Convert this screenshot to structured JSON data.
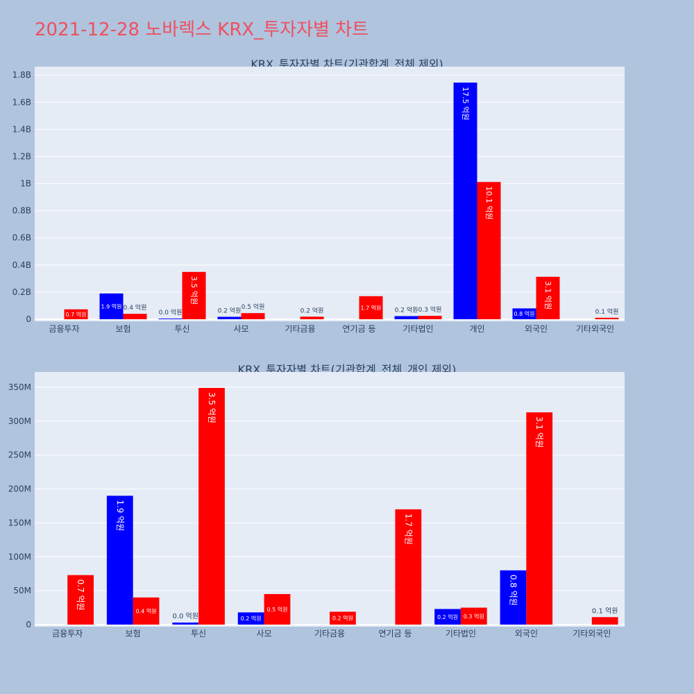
{
  "page_title": "2021-12-28 노바렉스 KRX_투자자별 차트",
  "colors": {
    "buy": "#0000ff",
    "sell": "#ff0000",
    "plot_bg": "#e5ecf6",
    "page_bg": "#b0c4de"
  },
  "chart_data": [
    {
      "type": "bar",
      "title": "KRX_투자자별 차트(기관합계_전체 제외)",
      "categories": [
        "금융투자",
        "보험",
        "투신",
        "사모",
        "기타금융",
        "연기금 등",
        "기타법인",
        "개인",
        "외국인",
        "기타외국인"
      ],
      "ylim": [
        0,
        1800000000
      ],
      "yticks": [
        0,
        200000000,
        400000000,
        600000000,
        800000000,
        1000000000,
        1200000000,
        1400000000,
        1600000000,
        1800000000
      ],
      "yticklabels": [
        "0",
        "0.2B",
        "0.4B",
        "0.6B",
        "0.8B",
        "1B",
        "1.2B",
        "1.4B",
        "1.6B",
        "1.8B"
      ],
      "series": [
        {
          "color": "#0000ff",
          "values": [
            null,
            190000000,
            3000000,
            18000000,
            null,
            null,
            23000000,
            1745000000,
            80000000,
            null
          ],
          "labels": [
            "",
            "1.9 억원",
            "0.0 억원",
            "0.2 억원",
            "",
            "",
            "0.2 억원",
            "17.5 억원",
            "0.8 억원",
            ""
          ]
        },
        {
          "color": "#ff0000",
          "values": [
            73000000,
            40000000,
            349000000,
            45000000,
            19000000,
            170000000,
            25000000,
            1012000000,
            313000000,
            11000000
          ],
          "labels": [
            "0.7 억원",
            "0.4 억원",
            "3.5 억원",
            "0.5 억원",
            "0.2 억원",
            "1.7 억원",
            "0.3 억원",
            "10.1 억원",
            "3.1 억원",
            "0.1 억원"
          ]
        }
      ]
    },
    {
      "type": "bar",
      "title": "KRX_투자자별 차트(기관합계_전체_개인 제외)",
      "categories": [
        "금융투자",
        "보험",
        "투신",
        "사모",
        "기타금융",
        "연기금 등",
        "기타법인",
        "외국인",
        "기타외국인"
      ],
      "ylim": [
        0,
        350000000
      ],
      "yticks": [
        0,
        50000000,
        100000000,
        150000000,
        200000000,
        250000000,
        300000000,
        350000000
      ],
      "yticklabels": [
        "0",
        "50M",
        "100M",
        "150M",
        "200M",
        "250M",
        "300M",
        "350M"
      ],
      "series": [
        {
          "color": "#0000ff",
          "values": [
            null,
            190000000,
            3000000,
            18000000,
            null,
            null,
            23000000,
            80000000,
            null
          ],
          "labels": [
            "",
            "1.9 억원",
            "0.0 억원",
            "0.2 억원",
            "",
            "",
            "0.2 억원",
            "0.8 억원",
            ""
          ]
        },
        {
          "color": "#ff0000",
          "values": [
            73000000,
            40000000,
            349000000,
            45000000,
            19000000,
            170000000,
            25000000,
            313000000,
            11000000
          ],
          "labels": [
            "0.7 억원",
            "0.4 억원",
            "3.5 억원",
            "0.5 억원",
            "0.2 억원",
            "1.7 억원",
            "0.3 억원",
            "3.1 억원",
            "0.1 억원"
          ]
        }
      ]
    }
  ]
}
